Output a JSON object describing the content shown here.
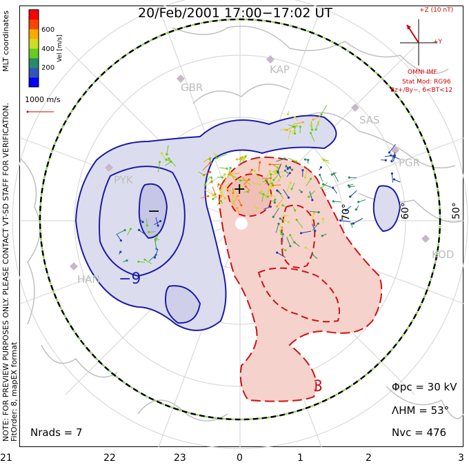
{
  "title": "20/Feb/2001 17:00−17:02 UT",
  "colorbar": {
    "label": "Vel [m/s]",
    "ticks": [
      "600",
      "400",
      "200"
    ],
    "colors": [
      "#0000ff",
      "#3355bb",
      "#2a8a6a",
      "#66cc22",
      "#ccdd22",
      "#ffaa00",
      "#ff4400",
      "#ff0000"
    ]
  },
  "scale_vector": {
    "label": "1000 m/s",
    "color": "#d40000"
  },
  "side_notes": {
    "coordinates": "MLT coordinates",
    "preview_note": "NOTE: FOR PREVIEW PURPOSES ONLY.  PLEASE CONTACT VT-SD STAFF FOR VERIFICATION.",
    "fit": "FitOrder: 8,  mapEX format"
  },
  "imf": {
    "z_label": "+Z (10 nT)",
    "y_label": "+Y",
    "model_label": "OMNI IMF",
    "stat_mod": "Stat Mod: RG96",
    "bz_line": "Bz+/By−, 6<BT<12"
  },
  "stations": [
    "KAP",
    "GBR",
    "SAS",
    "PGR",
    "PYK",
    "KOD",
    "HAN"
  ],
  "stats": {
    "phi_pc": "Φpc  =  30 kV",
    "lambda_hm": "ΛHM  =  53°",
    "n_vc": "Nvc  =  476",
    "n_rads": "Nrads  =  7"
  },
  "mlt_ticks": [
    "21",
    "22",
    "23",
    "0",
    "1",
    "2",
    "3"
  ],
  "lat_labels": [
    "70°",
    "60°",
    "50°"
  ],
  "contour_labels": [
    "−9",
    "3",
    "−",
    "+"
  ],
  "colors": {
    "negative_fill": "#dcdcef",
    "negative_line": "#1a1aa8",
    "positive_fill": "#f6d2cc",
    "positive_line": "#cc1111",
    "boundary": "#000000",
    "boundary_dash": "#8ed14a",
    "land": "#bfbfbf"
  }
}
